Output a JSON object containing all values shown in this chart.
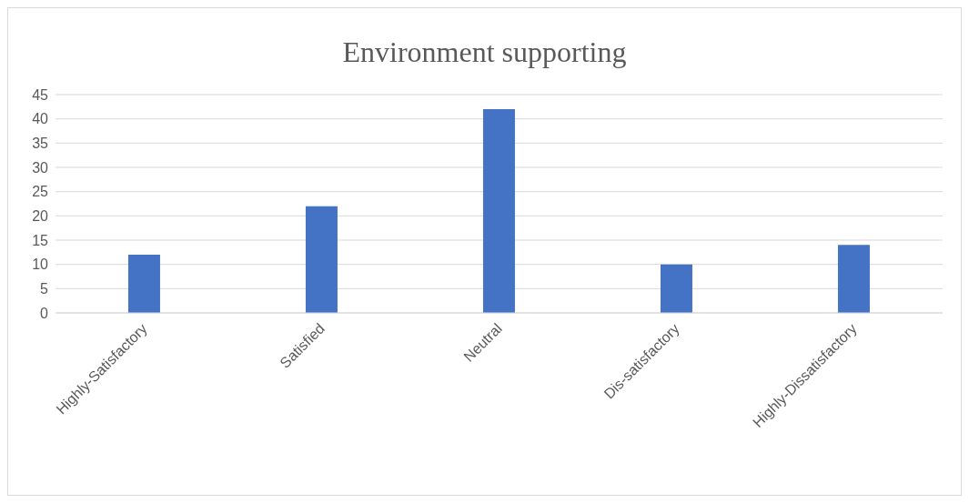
{
  "chart_data": {
    "type": "bar",
    "title": "Environment supporting",
    "categories": [
      "Highly-Satisfactory",
      "Satisfied",
      "Neutral",
      "Dis-satisfactory",
      "Highly-Dissatisfactory"
    ],
    "values": [
      12,
      22,
      42,
      10,
      14
    ],
    "color": "#4472c4",
    "ylim": [
      0,
      45
    ],
    "yticks": [
      0,
      5,
      10,
      15,
      20,
      25,
      30,
      35,
      40,
      45
    ],
    "grid": "y"
  }
}
